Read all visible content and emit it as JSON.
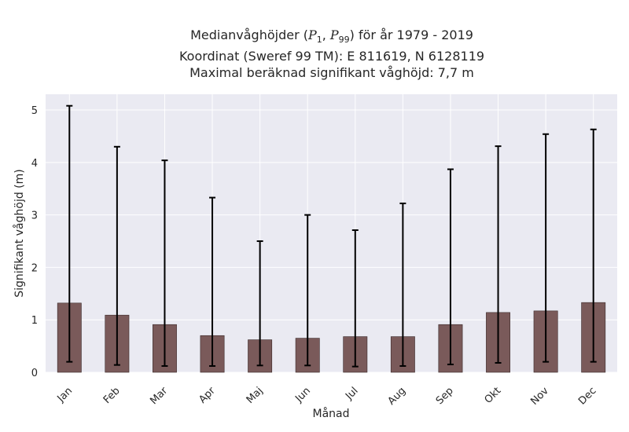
{
  "title_lines": [
    "Medianvåghöjder (P1, P99) för år 1979 - 2019",
    "Koordinat (Sweref 99 TM): E 811619, N 6128119",
    "Maximal beräknad signifikant våghöjd: 7,7 m"
  ],
  "chart_data": {
    "type": "bar",
    "title": "Medianvåghöjder (P1, P99) för år 1979 - 2019",
    "xlabel": "Månad",
    "ylabel": "Signifikant våghöjd (m)",
    "ylim": [
      0,
      5.3
    ],
    "yticks": [
      0,
      1,
      2,
      3,
      4,
      5
    ],
    "grid": true,
    "categories": [
      "Jan",
      "Feb",
      "Mar",
      "Apr",
      "Maj",
      "Jun",
      "Jul",
      "Aug",
      "Sep",
      "Okt",
      "Nov",
      "Dec"
    ],
    "series": [
      {
        "values": [
          1.32,
          1.09,
          0.91,
          0.7,
          0.62,
          0.65,
          0.68,
          0.68,
          0.91,
          1.14,
          1.17,
          1.33
        ],
        "p1": [
          0.2,
          0.14,
          0.12,
          0.12,
          0.13,
          0.13,
          0.11,
          0.12,
          0.15,
          0.18,
          0.2,
          0.2
        ],
        "p99": [
          5.08,
          4.3,
          4.04,
          3.33,
          2.5,
          3.0,
          2.71,
          3.22,
          3.87,
          4.31,
          4.54,
          4.63
        ],
        "color": "#7a5a5a"
      }
    ]
  }
}
